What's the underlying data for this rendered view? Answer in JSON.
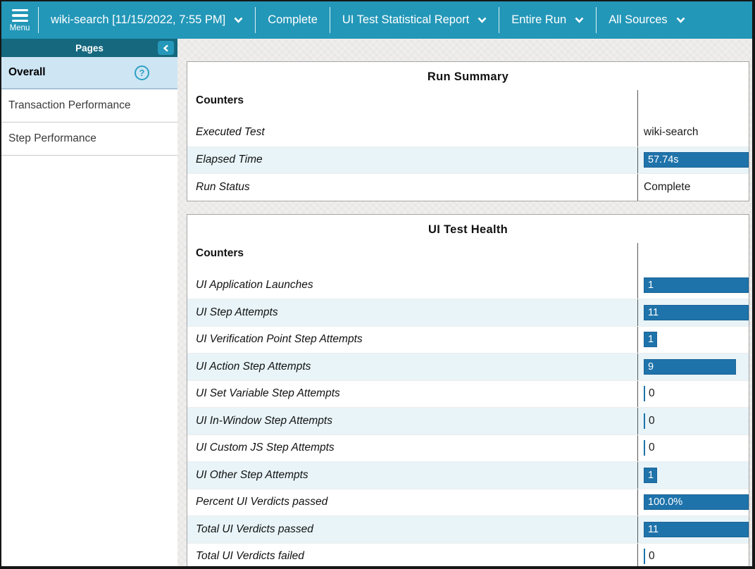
{
  "topbar": {
    "menu_label": "Menu",
    "run_selector": "wiki-search [11/15/2022, 7:55 PM]",
    "status": "Complete",
    "report_selector": "UI Test Statistical Report",
    "scope_selector": "Entire Run",
    "sources_selector": "All Sources"
  },
  "sidebar": {
    "title": "Pages",
    "items": [
      {
        "label": "Overall",
        "selected": true
      },
      {
        "label": "Transaction Performance",
        "selected": false
      },
      {
        "label": "Step Performance",
        "selected": false
      }
    ]
  },
  "icons": {
    "help": "?"
  },
  "run_summary": {
    "title": "Run Summary",
    "counters_label": "Counters",
    "rows": [
      {
        "label": "Executed Test",
        "value": "wiki-search",
        "bar": null
      },
      {
        "label": "Elapsed Time",
        "value": "57.74s",
        "bar": 100
      },
      {
        "label": "Run Status",
        "value": "Complete",
        "bar": null
      }
    ]
  },
  "ui_test_health": {
    "title": "UI Test Health",
    "counters_label": "Counters",
    "rows": [
      {
        "label": "UI Application Launches",
        "value": "1",
        "bar": 100
      },
      {
        "label": "UI Step Attempts",
        "value": "11",
        "bar": 100
      },
      {
        "label": "UI Verification Point Step Attempts",
        "value": "1",
        "bar": 13
      },
      {
        "label": "UI Action Step Attempts",
        "value": "9",
        "bar": 88
      },
      {
        "label": "UI Set Variable Step Attempts",
        "value": "0",
        "bar": 0
      },
      {
        "label": "UI In-Window Step Attempts",
        "value": "0",
        "bar": 0
      },
      {
        "label": "UI Custom JS Step Attempts",
        "value": "0",
        "bar": 0
      },
      {
        "label": "UI Other Step Attempts",
        "value": "1",
        "bar": 13
      },
      {
        "label": "Percent UI Verdicts passed",
        "value": "100.0%",
        "bar": 100
      },
      {
        "label": "Total UI Verdicts passed",
        "value": "11",
        "bar": 100
      },
      {
        "label": "Total UI Verdicts failed",
        "value": "0",
        "bar": 0
      }
    ]
  },
  "colors": {
    "topbar_teal": "#2397b8",
    "pages_header_teal": "#15687e",
    "selected_item_blue": "#cee5f4",
    "row_alt_blue": "#e8f4f8",
    "value_bar_blue": "#1e73aa"
  }
}
